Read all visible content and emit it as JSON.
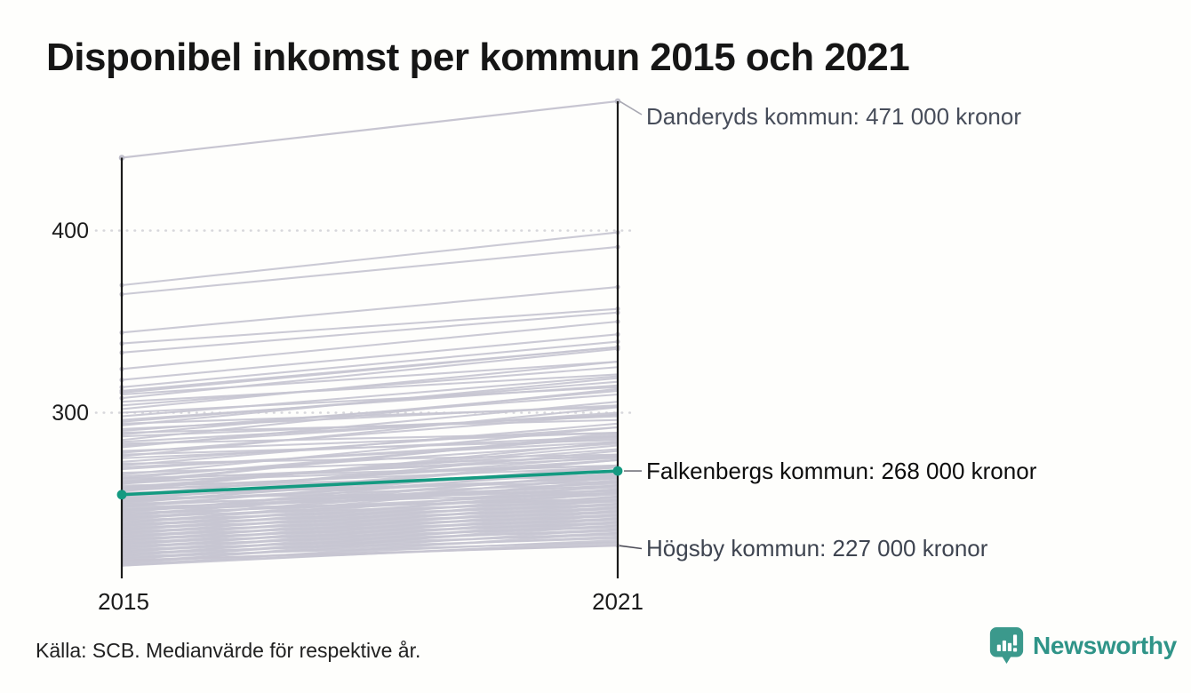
{
  "header": {
    "title": "Disponibel inkomst per kommun 2015 och 2021"
  },
  "chart_data": {
    "type": "line",
    "subtype": "slope-chart",
    "title": "Disponibel inkomst per kommun 2015 och 2021",
    "x_categories": [
      "2015",
      "2021"
    ],
    "y_axis": {
      "ticks": [
        400,
        300
      ],
      "tick_labels": [
        "400",
        "300"
      ],
      "unit": "tusen kronor",
      "grid": "dotted",
      "range_2015": [
        216,
        440
      ],
      "range_2021": [
        227,
        471
      ]
    },
    "colors": {
      "highlight": "#149a81",
      "background_line": "#c7c5d1",
      "axis": "#1b1b1b",
      "gridline": "#d7d7db"
    },
    "series_labeled": [
      {
        "name": "Danderyds kommun",
        "values": [
          440,
          471
        ],
        "label": "Danderyds kommun: 471 000 kronor",
        "style": "gray-dotted-ends"
      },
      {
        "name": "Falkenbergs kommun",
        "values": [
          255,
          268
        ],
        "label": "Falkenbergs kommun: 268 000 kronor",
        "style": "highlight"
      },
      {
        "name": "Högsby kommun",
        "values": [
          219,
          227
        ],
        "label": "Högsby kommun: 227 000 kronor",
        "style": "background"
      }
    ],
    "background_pairs": [
      [
        370,
        399
      ],
      [
        365,
        391
      ],
      [
        344,
        369
      ],
      [
        338,
        357
      ],
      [
        333,
        355
      ],
      [
        324,
        350
      ],
      [
        318,
        343
      ],
      [
        314,
        339
      ],
      [
        311,
        336
      ],
      [
        312,
        336
      ],
      [
        310,
        328
      ],
      [
        308,
        335
      ],
      [
        306,
        321
      ],
      [
        304,
        325
      ],
      [
        302,
        328
      ],
      [
        300,
        314
      ],
      [
        298,
        320
      ],
      [
        296,
        315
      ],
      [
        295,
        317
      ],
      [
        294,
        303
      ],
      [
        293,
        319
      ],
      [
        291,
        304
      ],
      [
        290,
        310
      ],
      [
        289,
        296
      ],
      [
        288,
        312
      ],
      [
        287,
        298
      ],
      [
        285,
        313
      ],
      [
        284,
        299
      ],
      [
        283,
        289
      ],
      [
        282,
        300
      ],
      [
        281,
        306
      ],
      [
        279,
        289
      ],
      [
        278,
        299
      ],
      [
        277,
        285
      ],
      [
        276,
        303
      ],
      [
        275,
        287
      ],
      [
        273,
        292
      ],
      [
        272,
        277
      ],
      [
        271,
        294
      ],
      [
        270,
        284
      ],
      [
        269,
        286
      ],
      [
        267,
        276
      ],
      [
        266,
        292
      ],
      [
        265,
        283
      ],
      [
        264,
        271
      ],
      [
        264,
        287
      ],
      [
        263,
        275
      ],
      [
        262,
        288
      ],
      [
        262,
        271
      ],
      [
        261,
        277
      ],
      [
        261,
        289
      ],
      [
        260,
        265
      ],
      [
        259,
        280
      ],
      [
        259,
        270
      ],
      [
        258,
        282
      ],
      [
        258,
        266
      ],
      [
        257,
        274
      ],
      [
        257,
        284
      ],
      [
        256,
        262
      ],
      [
        255,
        276
      ],
      [
        255,
        268
      ],
      [
        254,
        279
      ],
      [
        254,
        264
      ],
      [
        253,
        268
      ],
      [
        253,
        257
      ],
      [
        252,
        274
      ],
      [
        252,
        261
      ],
      [
        251,
        270
      ],
      [
        251,
        265
      ],
      [
        250,
        257
      ],
      [
        250,
        274
      ],
      [
        249,
        260
      ],
      [
        249,
        268
      ],
      [
        248,
        256
      ],
      [
        248,
        271
      ],
      [
        247,
        260
      ],
      [
        247,
        252
      ],
      [
        246,
        266
      ],
      [
        246,
        259
      ],
      [
        245,
        270
      ],
      [
        245,
        253
      ],
      [
        244,
        264
      ],
      [
        244,
        256
      ],
      [
        243,
        267
      ],
      [
        243,
        251
      ],
      [
        242,
        262
      ],
      [
        242,
        255
      ],
      [
        241,
        265
      ],
      [
        241,
        249
      ],
      [
        240,
        258
      ],
      [
        240,
        252
      ],
      [
        239,
        263
      ],
      [
        239,
        247
      ],
      [
        238,
        256
      ],
      [
        238,
        250
      ],
      [
        237,
        260
      ],
      [
        237,
        245
      ],
      [
        236,
        254
      ],
      [
        236,
        248
      ],
      [
        235,
        258
      ],
      [
        235,
        243
      ],
      [
        234,
        252
      ],
      [
        234,
        246
      ],
      [
        233,
        256
      ],
      [
        233,
        241
      ],
      [
        232,
        250
      ],
      [
        232,
        244
      ],
      [
        231,
        254
      ],
      [
        231,
        239
      ],
      [
        230,
        248
      ],
      [
        230,
        242
      ],
      [
        229,
        252
      ],
      [
        229,
        237
      ],
      [
        228,
        246
      ],
      [
        228,
        240
      ],
      [
        227,
        250
      ],
      [
        227,
        235
      ],
      [
        226,
        244
      ],
      [
        226,
        238
      ],
      [
        225,
        248
      ],
      [
        225,
        233
      ],
      [
        224,
        242
      ],
      [
        224,
        236
      ],
      [
        223,
        246
      ],
      [
        223,
        231
      ],
      [
        222,
        240
      ],
      [
        222,
        234
      ],
      [
        221,
        244
      ],
      [
        221,
        229
      ],
      [
        220,
        238
      ],
      [
        220,
        232
      ],
      [
        219,
        242
      ],
      [
        218,
        230
      ],
      [
        218,
        236
      ],
      [
        217,
        240
      ],
      [
        217,
        228
      ],
      [
        216,
        234
      ],
      [
        216,
        229
      ]
    ]
  },
  "footer": {
    "source": "Källa: SCB. Medianvärde för respektive år."
  },
  "logo": {
    "name": "Newsworthy",
    "icon": "newsworthy-chart-bubble-icon",
    "color": "#2f9488"
  }
}
